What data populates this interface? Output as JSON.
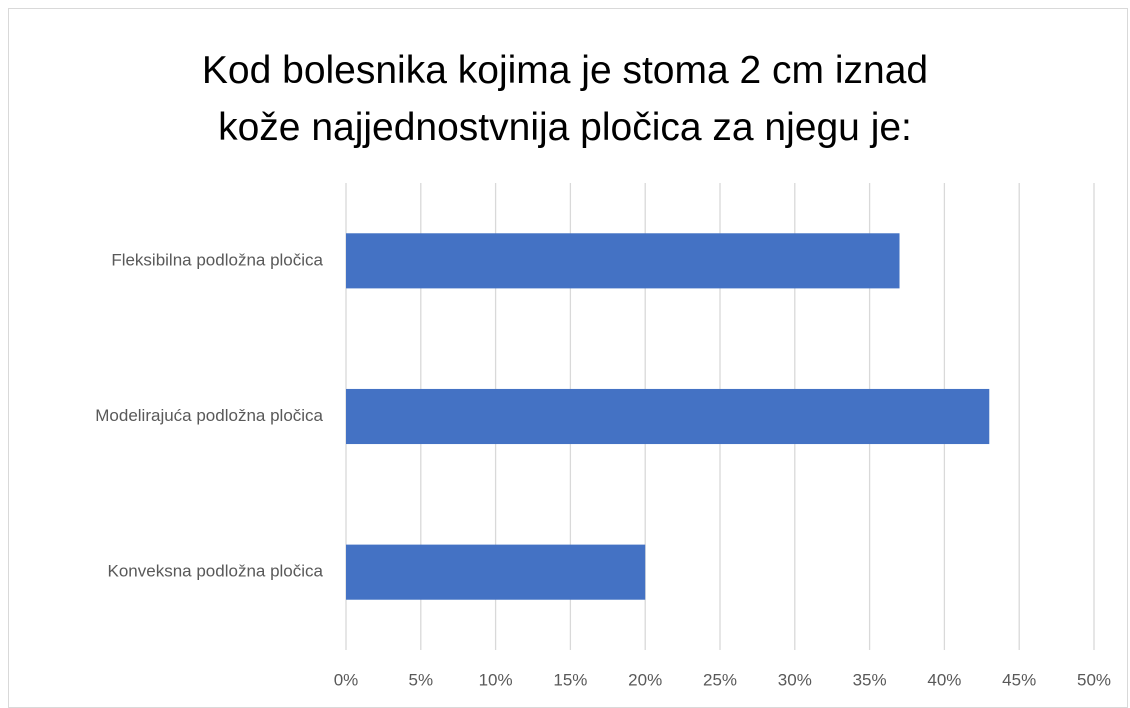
{
  "chart_data": {
    "type": "barh",
    "title": "Kod bolesnika kojima je stoma 2 cm iznad\nkože najjednostvnija pločica za njegu je:",
    "categories": [
      "Fleksibilna podložna pločica",
      "Modelirajuća podložna pločica",
      "Konveksna podložna pločica"
    ],
    "values": [
      37,
      43,
      20
    ],
    "color": "#4472c4",
    "xlim": [
      0,
      50
    ],
    "xticks": [
      {
        "value": 0,
        "label": "0%"
      },
      {
        "value": 5,
        "label": "5%"
      },
      {
        "value": 10,
        "label": "10%"
      },
      {
        "value": 15,
        "label": "15%"
      },
      {
        "value": 20,
        "label": "20%"
      },
      {
        "value": 25,
        "label": "25%"
      },
      {
        "value": 30,
        "label": "30%"
      },
      {
        "value": 35,
        "label": "35%"
      },
      {
        "value": 40,
        "label": "40%"
      },
      {
        "value": 45,
        "label": "45%"
      },
      {
        "value": 50,
        "label": "50%"
      }
    ],
    "grid": true
  }
}
